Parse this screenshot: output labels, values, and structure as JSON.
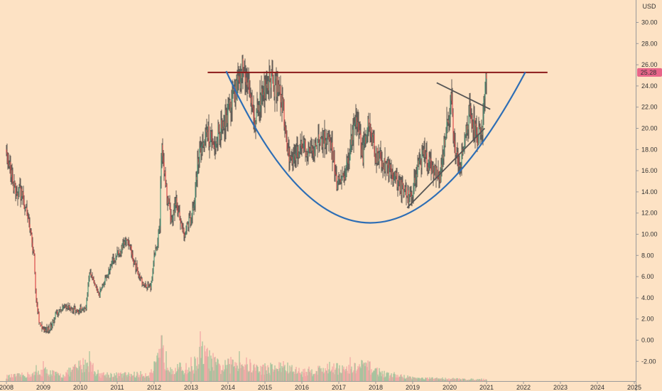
{
  "chart_data": {
    "type": "candlestick",
    "currency": "USD",
    "last_price": "25.28",
    "x_ticks": [
      "2008",
      "2009",
      "2010",
      "2011",
      "2012",
      "2013",
      "2014",
      "2015",
      "2016",
      "2017",
      "2018",
      "2019",
      "2020",
      "2021",
      "2022",
      "2023",
      "2024",
      "2025"
    ],
    "y_ticks": [
      "-2.00",
      "0.00",
      "2.00",
      "4.00",
      "6.00",
      "8.00",
      "10.00",
      "12.00",
      "14.00",
      "16.00",
      "18.00",
      "20.00",
      "22.00",
      "24.00",
      "26.00",
      "28.00",
      "30.00"
    ],
    "ylim": [
      -3.5,
      31.5
    ],
    "xlim": [
      2008.0,
      2025.2
    ],
    "price_path": [
      [
        2008.0,
        18.0
      ],
      [
        2008.2,
        14.5
      ],
      [
        2008.45,
        13.5
      ],
      [
        2008.6,
        11.0
      ],
      [
        2008.75,
        8.0
      ],
      [
        2008.8,
        4.0
      ],
      [
        2008.9,
        1.5
      ],
      [
        2009.0,
        0.8
      ],
      [
        2009.2,
        1.2
      ],
      [
        2009.35,
        2.6
      ],
      [
        2009.6,
        3.2
      ],
      [
        2009.9,
        2.8
      ],
      [
        2010.15,
        3.0
      ],
      [
        2010.25,
        6.5
      ],
      [
        2010.35,
        5.5
      ],
      [
        2010.5,
        4.2
      ],
      [
        2010.7,
        5.8
      ],
      [
        2010.9,
        7.5
      ],
      [
        2011.1,
        8.5
      ],
      [
        2011.25,
        9.8
      ],
      [
        2011.5,
        7.0
      ],
      [
        2011.7,
        5.2
      ],
      [
        2011.9,
        5.0
      ],
      [
        2012.0,
        7.8
      ],
      [
        2012.15,
        10.5
      ],
      [
        2012.2,
        19.0
      ],
      [
        2012.3,
        15.0
      ],
      [
        2012.45,
        11.5
      ],
      [
        2012.6,
        13.0
      ],
      [
        2012.8,
        10.0
      ],
      [
        2013.0,
        11.5
      ],
      [
        2013.1,
        13.5
      ],
      [
        2013.2,
        17.5
      ],
      [
        2013.45,
        19.5
      ],
      [
        2013.6,
        18.5
      ],
      [
        2013.8,
        20.0
      ],
      [
        2014.0,
        21.5
      ],
      [
        2014.2,
        23.5
      ],
      [
        2014.4,
        25.8
      ],
      [
        2014.55,
        24.0
      ],
      [
        2014.75,
        20.5
      ],
      [
        2014.9,
        23.5
      ],
      [
        2015.1,
        24.5
      ],
      [
        2015.3,
        24.0
      ],
      [
        2015.5,
        22.0
      ],
      [
        2015.6,
        18.0
      ],
      [
        2015.75,
        17.0
      ],
      [
        2016.0,
        18.5
      ],
      [
        2016.2,
        17.5
      ],
      [
        2016.5,
        19.0
      ],
      [
        2016.8,
        18.5
      ],
      [
        2016.95,
        14.5
      ],
      [
        2017.2,
        16.0
      ],
      [
        2017.45,
        21.0
      ],
      [
        2017.65,
        17.5
      ],
      [
        2017.8,
        21.0
      ],
      [
        2018.0,
        17.5
      ],
      [
        2018.3,
        16.5
      ],
      [
        2018.5,
        15.5
      ],
      [
        2018.75,
        14.0
      ],
      [
        2018.9,
        13.5
      ],
      [
        2019.0,
        14.0
      ],
      [
        2019.15,
        16.5
      ],
      [
        2019.3,
        17.5
      ],
      [
        2019.55,
        16.0
      ],
      [
        2019.75,
        15.5
      ],
      [
        2019.95,
        21.0
      ],
      [
        2020.05,
        22.5
      ],
      [
        2020.15,
        18.0
      ],
      [
        2020.25,
        16.0
      ],
      [
        2020.4,
        19.0
      ],
      [
        2020.55,
        21.5
      ],
      [
        2020.75,
        19.0
      ],
      [
        2020.9,
        20.0
      ],
      [
        2020.97,
        25.5
      ],
      [
        2021.0,
        25.28
      ]
    ],
    "volume_profile": [
      [
        2008.0,
        0.5
      ],
      [
        2008.8,
        0.8
      ],
      [
        2009.0,
        1.2
      ],
      [
        2009.5,
        0.6
      ],
      [
        2010.2,
        2.2
      ],
      [
        2010.5,
        0.8
      ],
      [
        2011.0,
        0.7
      ],
      [
        2011.9,
        0.8
      ],
      [
        2012.2,
        3.0
      ],
      [
        2012.5,
        1.5
      ],
      [
        2013.0,
        1.4
      ],
      [
        2013.3,
        3.2
      ],
      [
        2013.8,
        1.5
      ],
      [
        2014.3,
        2.2
      ],
      [
        2014.8,
        1.4
      ],
      [
        2015.5,
        1.6
      ],
      [
        2016.0,
        1.0
      ],
      [
        2016.9,
        1.6
      ],
      [
        2017.2,
        1.2
      ],
      [
        2017.7,
        1.8
      ],
      [
        2018.3,
        0.7
      ],
      [
        2018.8,
        0.5
      ],
      [
        2019.2,
        0.3
      ],
      [
        2019.8,
        0.3
      ],
      [
        2020.5,
        0.2
      ],
      [
        2021.0,
        0.2
      ]
    ],
    "volume_spikes": [
      [
        2008.8,
        1.6
      ],
      [
        2009.0,
        2.0
      ],
      [
        2010.25,
        3.0
      ],
      [
        2012.2,
        4.6
      ],
      [
        2012.25,
        3.6
      ],
      [
        2013.0,
        2.4
      ],
      [
        2013.25,
        5.0
      ],
      [
        2013.6,
        2.0
      ],
      [
        2014.3,
        3.0
      ],
      [
        2015.5,
        2.0
      ],
      [
        2016.95,
        1.8
      ],
      [
        2017.3,
        2.4
      ],
      [
        2017.75,
        1.8
      ],
      [
        2018.5,
        0.9
      ]
    ],
    "annotations": {
      "resistance_line": {
        "x": [
          2013.45,
          2022.65
        ],
        "y": 25.28,
        "color": "#8b1a1a"
      },
      "cup_curve": {
        "start": [
          2013.95,
          25.4
        ],
        "control": [
          2017.7,
          -3.2
        ],
        "end": [
          2022.05,
          25.3
        ],
        "color": "#2e6eb5"
      },
      "wedge_upper": {
        "x": [
          2019.65,
          2021.1
        ],
        "y": [
          24.3,
          21.8
        ],
        "color": "#555555"
      },
      "wedge_lower": {
        "x": [
          2018.85,
          2020.95
        ],
        "y": [
          12.5,
          20.0
        ],
        "color": "#555555"
      }
    },
    "colors": {
      "background": "#fde2c4",
      "up": "#4a9a7c",
      "down": "#d94a4a",
      "last_price_badge": "#e8658a",
      "volume_up": "#9fbf9a",
      "volume_down": "#f0a3a3"
    }
  }
}
